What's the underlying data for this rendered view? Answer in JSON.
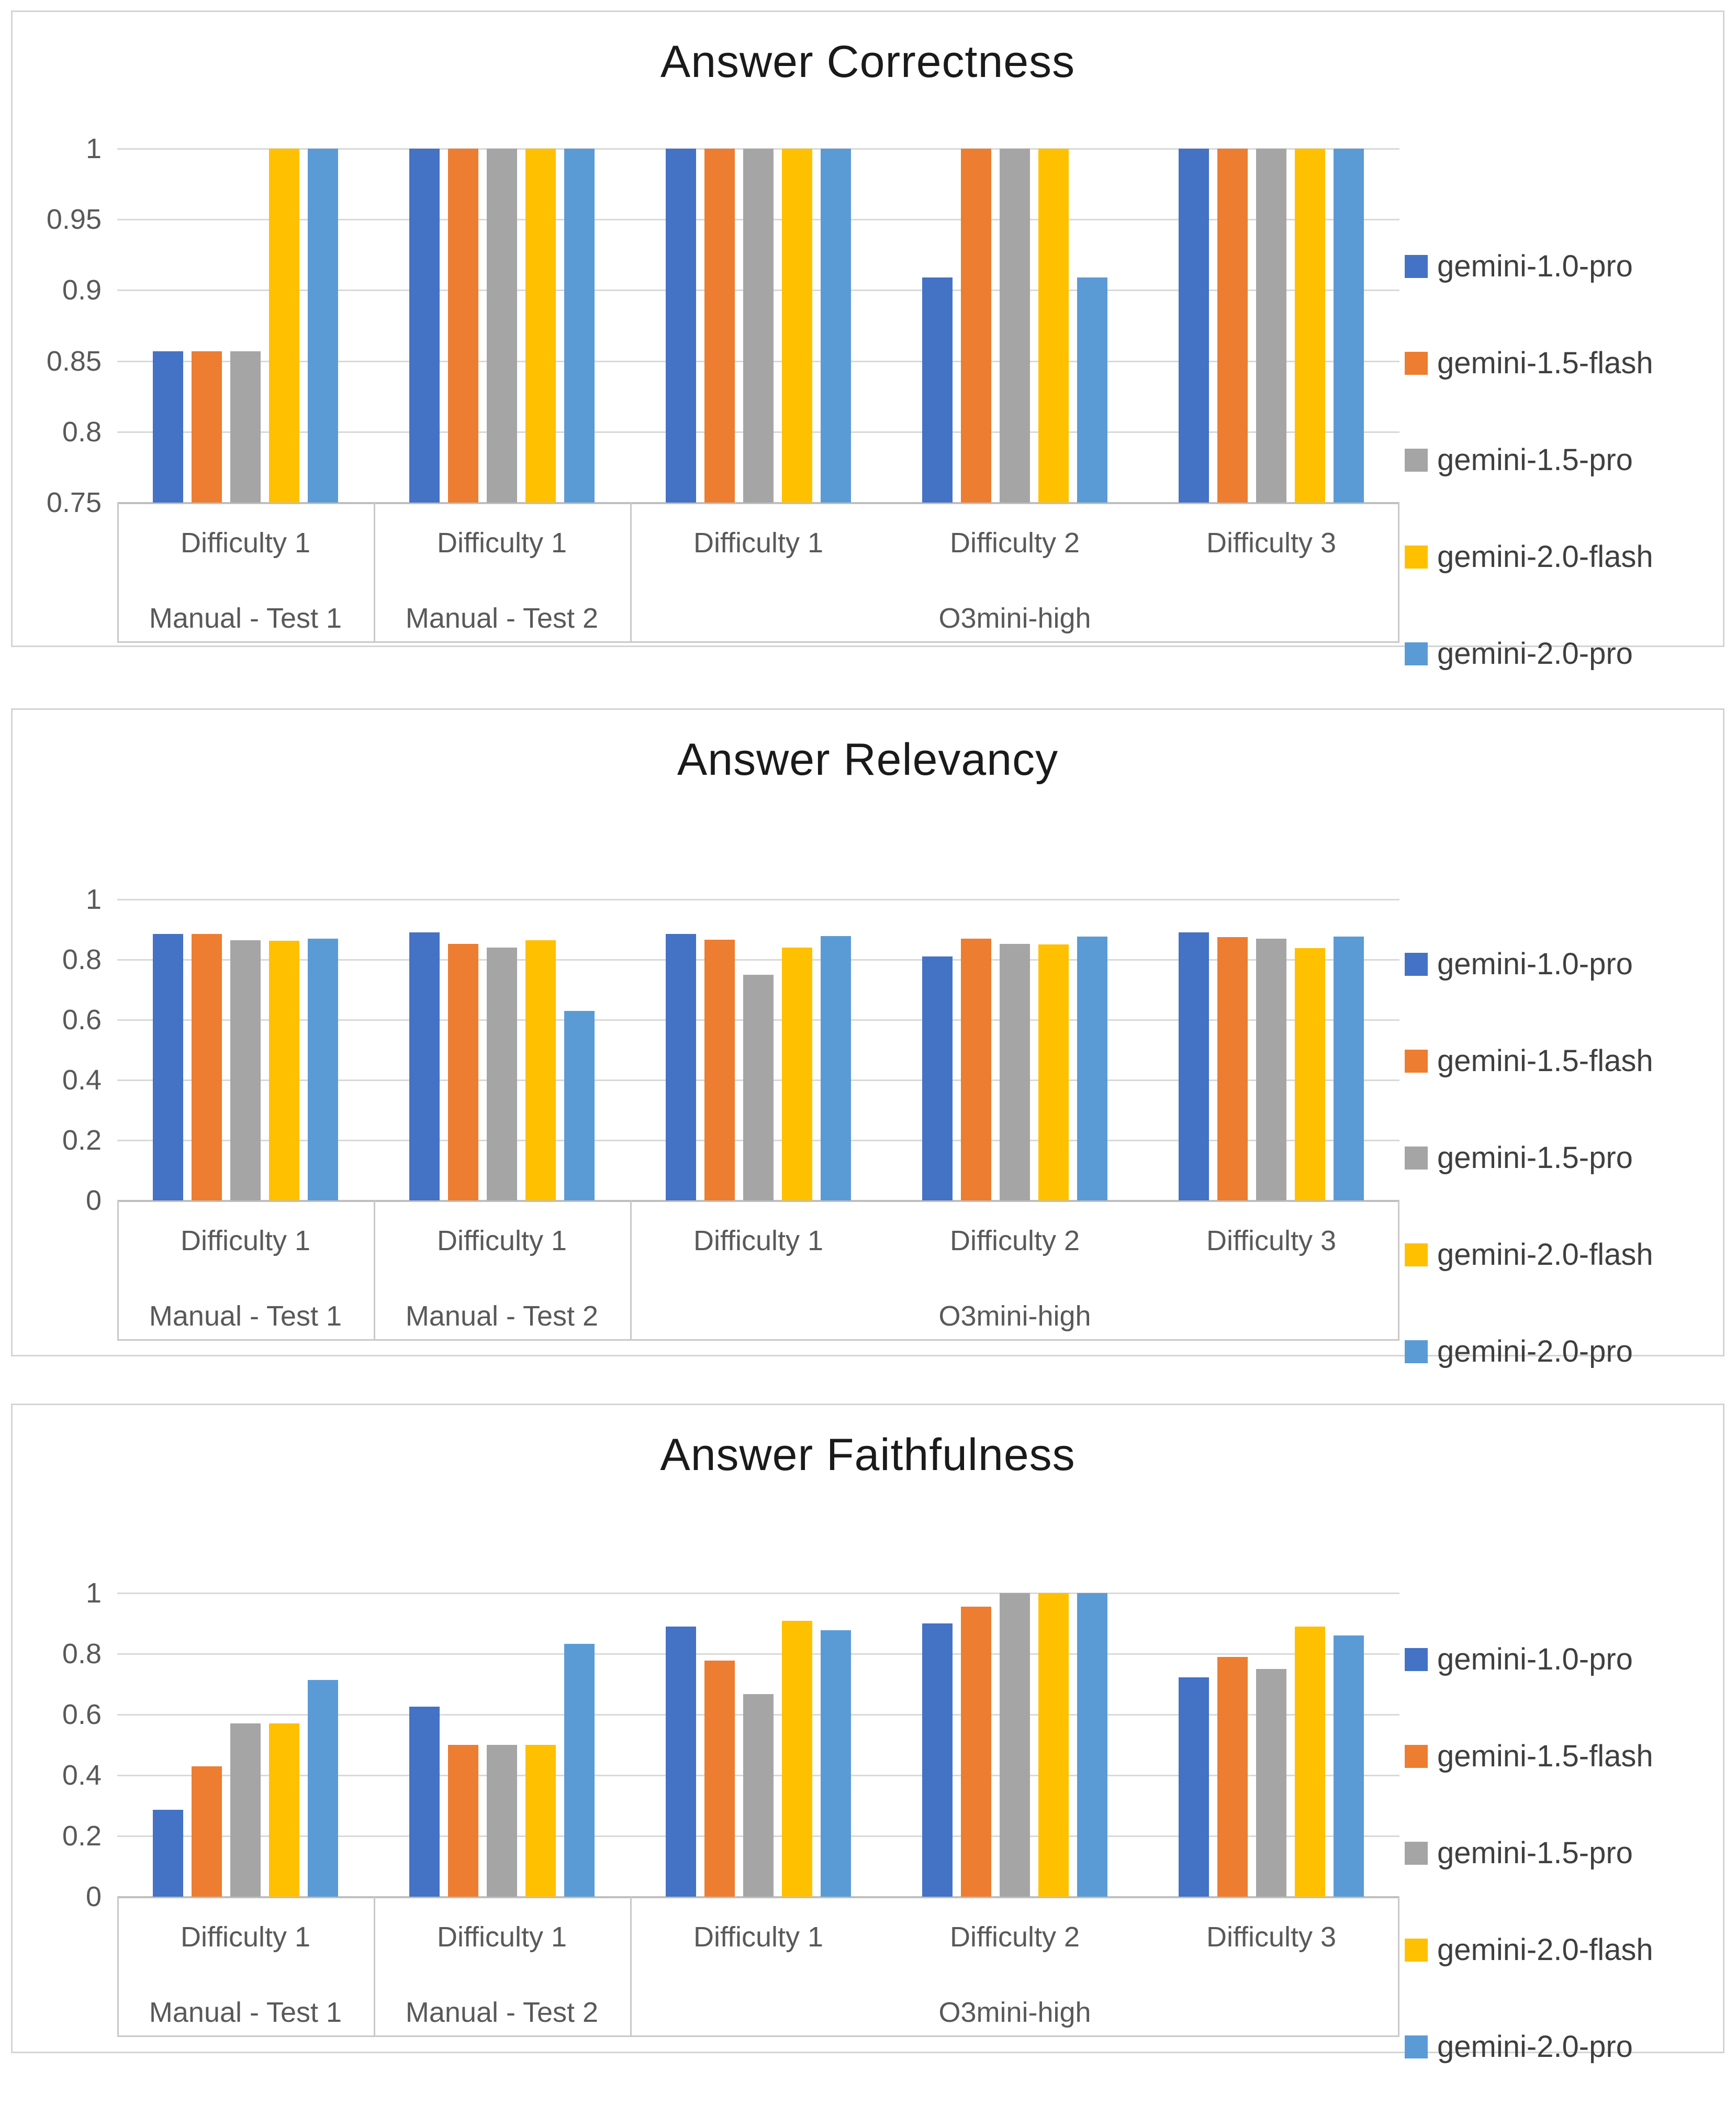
{
  "page": {
    "background": "#ffffff",
    "accent_colors": {
      "blue": "#4472C4",
      "orange": "#ED7D31",
      "gray": "#A5A5A5",
      "yellow": "#FFC000",
      "light_blue": "#5B9BD5"
    }
  },
  "chart_data": [
    {
      "type": "bar",
      "title": "Answer Correctness",
      "ylim": [
        0.75,
        1
      ],
      "grid": true,
      "legend_position": "right",
      "ytick_labels": [
        "1",
        "0.95",
        "0.9",
        "0.85",
        "0.8",
        "0.75"
      ],
      "categories_tier1": [
        "Difficulty 1",
        "Difficulty 1",
        "Difficulty 1",
        "Difficulty 2",
        "Difficulty 3"
      ],
      "categories_tier2": [
        {
          "label": "Manual - Test 1",
          "span": 1
        },
        {
          "label": "Manual - Test 2",
          "span": 1
        },
        {
          "label": "O3mini-high",
          "span": 3
        }
      ],
      "series": [
        {
          "name": "gemini-1.0-pro",
          "color": "#4472C4",
          "values": [
            0.857,
            1,
            1,
            0.909,
            1
          ]
        },
        {
          "name": "gemini-1.5-flash",
          "color": "#ED7D31",
          "values": [
            0.857,
            1,
            1,
            1,
            1
          ]
        },
        {
          "name": "gemini-1.5-pro",
          "color": "#A5A5A5",
          "values": [
            0.857,
            1,
            1,
            1,
            1
          ]
        },
        {
          "name": "gemini-2.0-flash",
          "color": "#FFC000",
          "values": [
            1,
            1,
            1,
            1,
            1
          ]
        },
        {
          "name": "gemini-2.0-pro",
          "color": "#5B9BD5",
          "values": [
            1,
            1,
            1,
            0.909,
            1
          ]
        }
      ]
    },
    {
      "type": "bar",
      "title": "Answer Relevancy",
      "ylim": [
        0,
        1
      ],
      "grid": true,
      "legend_position": "right",
      "ytick_labels": [
        "1",
        "0.8",
        "0.6",
        "0.4",
        "0.2",
        "0"
      ],
      "categories_tier1": [
        "Difficulty 1",
        "Difficulty 1",
        "Difficulty 1",
        "Difficulty 2",
        "Difficulty 3"
      ],
      "categories_tier2": [
        {
          "label": "Manual - Test 1",
          "span": 1
        },
        {
          "label": "Manual - Test 2",
          "span": 1
        },
        {
          "label": "O3mini-high",
          "span": 3
        }
      ],
      "series": [
        {
          "name": "gemini-1.0-pro",
          "color": "#4472C4",
          "values": [
            0.885,
            0.89,
            0.886,
            0.81,
            0.89
          ]
        },
        {
          "name": "gemini-1.5-flash",
          "color": "#ED7D31",
          "values": [
            0.886,
            0.853,
            0.866,
            0.87,
            0.875
          ]
        },
        {
          "name": "gemini-1.5-pro",
          "color": "#A5A5A5",
          "values": [
            0.864,
            0.84,
            0.75,
            0.853,
            0.87
          ]
        },
        {
          "name": "gemini-2.0-flash",
          "color": "#FFC000",
          "values": [
            0.863,
            0.865,
            0.84,
            0.851,
            0.838
          ]
        },
        {
          "name": "gemini-2.0-pro",
          "color": "#5B9BD5",
          "values": [
            0.87,
            0.63,
            0.878,
            0.876,
            0.877
          ]
        }
      ]
    },
    {
      "type": "bar",
      "title": "Answer Faithfulness",
      "ylim": [
        0,
        1
      ],
      "grid": true,
      "legend_position": "right",
      "ytick_labels": [
        "1",
        "0.8",
        "0.6",
        "0.4",
        "0.2",
        "0"
      ],
      "categories_tier1": [
        "Difficulty 1",
        "Difficulty 1",
        "Difficulty 1",
        "Difficulty 2",
        "Difficulty 3"
      ],
      "categories_tier2": [
        {
          "label": "Manual - Test 1",
          "span": 1
        },
        {
          "label": "Manual - Test 2",
          "span": 1
        },
        {
          "label": "O3mini-high",
          "span": 3
        }
      ],
      "series": [
        {
          "name": "gemini-1.0-pro",
          "color": "#4472C4",
          "values": [
            0.286,
            0.625,
            0.889,
            0.9,
            0.722
          ]
        },
        {
          "name": "gemini-1.5-flash",
          "color": "#ED7D31",
          "values": [
            0.429,
            0.5,
            0.778,
            0.955,
            0.79
          ]
        },
        {
          "name": "gemini-1.5-pro",
          "color": "#A5A5A5",
          "values": [
            0.571,
            0.5,
            0.667,
            1,
            0.75
          ]
        },
        {
          "name": "gemini-2.0-flash",
          "color": "#FFC000",
          "values": [
            0.571,
            0.5,
            0.909,
            1,
            0.889
          ]
        },
        {
          "name": "gemini-2.0-pro",
          "color": "#5B9BD5",
          "values": [
            0.714,
            0.833,
            0.878,
            1,
            0.861
          ]
        }
      ]
    }
  ]
}
